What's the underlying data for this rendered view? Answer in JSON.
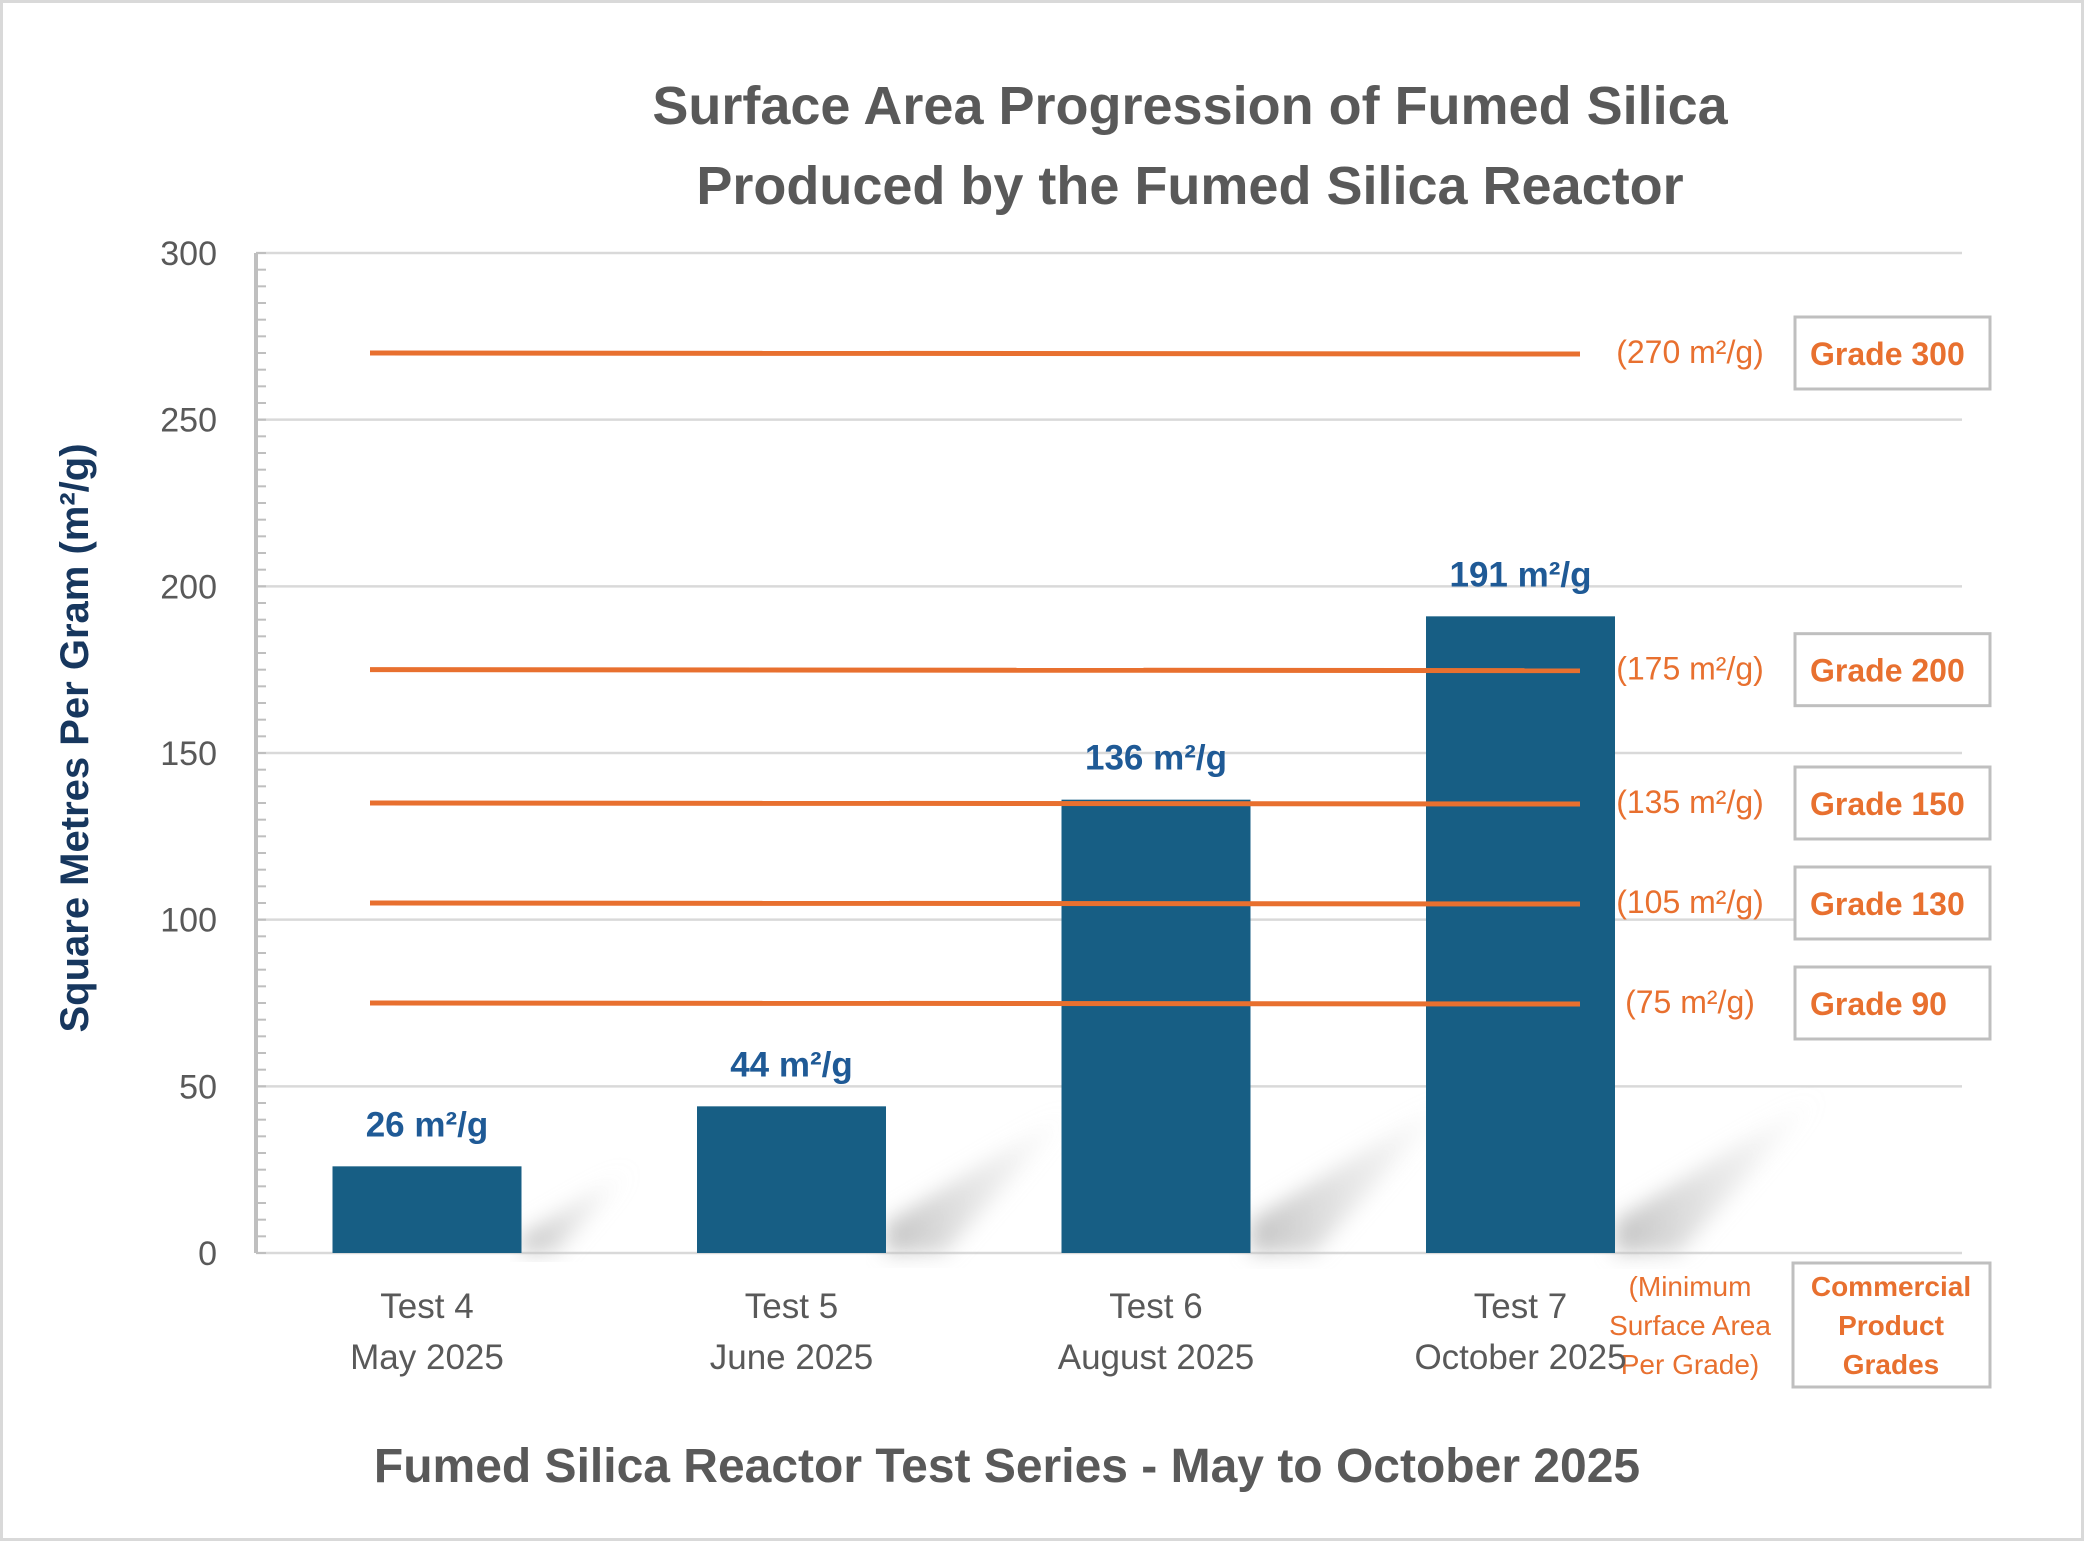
{
  "chart_data": {
    "type": "bar",
    "title": [
      "Surface Area Progression of Fumed Silica",
      "Produced by the Fumed Silica Reactor"
    ],
    "xlabel": "Fumed Silica Reactor Test Series - May to October 2025",
    "ylabel": "Square Metres Per Gram (m²/g)",
    "ylim": [
      0,
      300
    ],
    "yticks": [
      0,
      50,
      100,
      150,
      200,
      250,
      300
    ],
    "grid": true,
    "categories": [
      [
        "Test 4",
        "May 2025"
      ],
      [
        "Test 5",
        "June 2025"
      ],
      [
        "Test 6",
        "August 2025"
      ],
      [
        "Test 7",
        "October 2025"
      ]
    ],
    "values": [
      26,
      44,
      136,
      191
    ],
    "data_labels": [
      "26 m²/g",
      "44 m²/g",
      "136 m²/g",
      "191 m²/g"
    ],
    "reference_lines": [
      {
        "value": 270,
        "label": "(270 m²/g)",
        "grade": "Grade 300"
      },
      {
        "value": 175,
        "label": "(175 m²/g)",
        "grade": "Grade 200"
      },
      {
        "value": 135,
        "label": "(135 m²/g)",
        "grade": "Grade 150"
      },
      {
        "value": 105,
        "label": "(105 m²/g)",
        "grade": "Grade 130"
      },
      {
        "value": 75,
        "label": "(75 m²/g)",
        "grade": "Grade 90"
      }
    ],
    "reference_caption": [
      "(Minimum",
      "Surface Area",
      "Per Grade)"
    ],
    "grade_caption": [
      "Commercial",
      "Product",
      "Grades"
    ],
    "colors": {
      "bar": "#175E84",
      "data_label": "#1F5A96",
      "reference": "#E8702F",
      "axis_title": "#17375E",
      "title": "#595959",
      "grid": "#D9D9D9"
    }
  }
}
